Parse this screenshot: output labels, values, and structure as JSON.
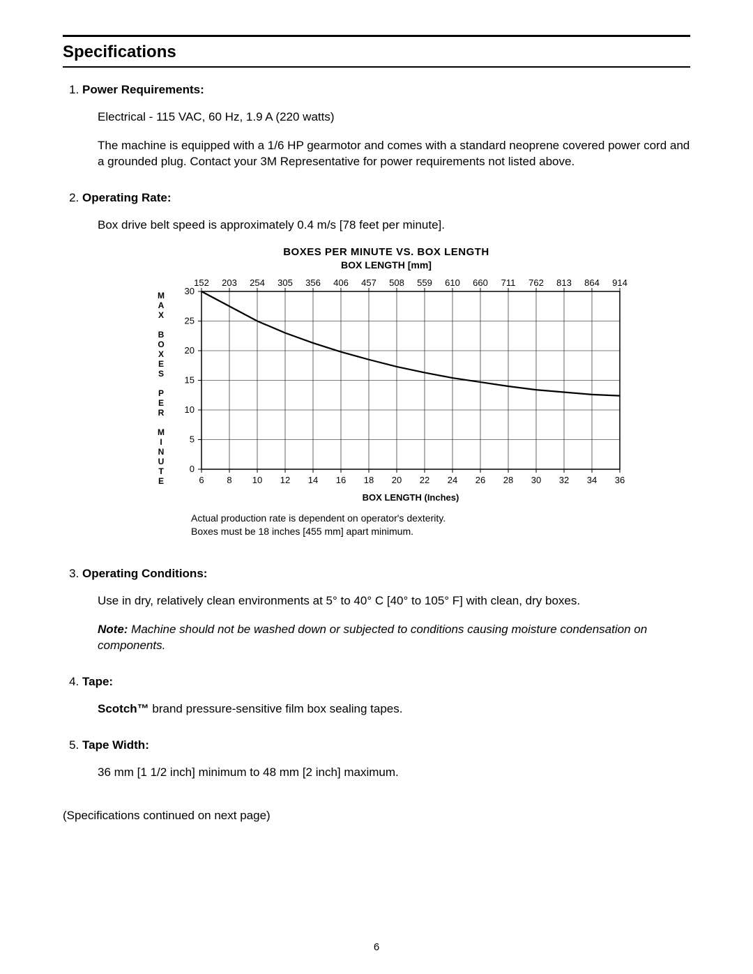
{
  "section_title": "Specifications",
  "items": [
    {
      "heading": "Power Requirements:",
      "paragraphs": [
        "Electrical - 115 VAC, 60 Hz, 1.9 A (220 watts)",
        "The machine is equipped with a 1/6 HP gearmotor and comes with a standard neoprene covered power cord and a grounded plug.  Contact your 3M  Representative for power requirements not listed above."
      ]
    },
    {
      "heading": "Operating Rate:",
      "paragraphs": [
        "Box drive belt speed is approximately 0.4 m/s [78 feet per minute]."
      ]
    },
    {
      "heading": "Operating Conditions:",
      "paragraphs": [
        "Use in dry, relatively clean environments at 5° to 40° C [40°  to 105° F]  with clean, dry boxes."
      ],
      "note_label": "Note:",
      "note_body": "  Machine should not be washed down or subjected to conditions causing moisture condensation on components."
    },
    {
      "heading": "Tape:",
      "brand_text": "Scotch™",
      "tape_body": " brand pressure-sensitive film box sealing tapes."
    },
    {
      "heading": "Tape Width:",
      "paragraphs": [
        "36 mm [1 1/2 inch] minimum to 48 mm [2 inch] maximum."
      ]
    }
  ],
  "chart": {
    "type": "line",
    "title": "BOXES PER MINUTE VS. BOX LENGTH",
    "top_axis_label": "BOX LENGTH [mm]",
    "top_ticks": [
      "152",
      "203",
      "254",
      "305",
      "356",
      "406",
      "457",
      "508",
      "559",
      "610",
      "660",
      "711",
      "762",
      "813",
      "864",
      "914"
    ],
    "bottom_axis_label": "BOX LENGTH (Inches)",
    "bottom_ticks": [
      6,
      8,
      10,
      12,
      14,
      16,
      18,
      20,
      22,
      24,
      26,
      28,
      30,
      32,
      34,
      36
    ],
    "y_axis_label": "MAX BOXES PER MINUTE",
    "y_ticks": [
      0,
      5,
      10,
      15,
      20,
      25,
      30
    ],
    "ylim": [
      0,
      30
    ],
    "xlim": [
      6,
      36
    ],
    "curve": [
      {
        "x": 6,
        "y": 30
      },
      {
        "x": 8,
        "y": 27.5
      },
      {
        "x": 10,
        "y": 25
      },
      {
        "x": 12,
        "y": 23
      },
      {
        "x": 14,
        "y": 21.3
      },
      {
        "x": 16,
        "y": 19.8
      },
      {
        "x": 18,
        "y": 18.5
      },
      {
        "x": 20,
        "y": 17.3
      },
      {
        "x": 22,
        "y": 16.3
      },
      {
        "x": 24,
        "y": 15.4
      },
      {
        "x": 26,
        "y": 14.7
      },
      {
        "x": 28,
        "y": 14.0
      },
      {
        "x": 30,
        "y": 13.4
      },
      {
        "x": 32,
        "y": 13.0
      },
      {
        "x": 34,
        "y": 12.6
      },
      {
        "x": 36,
        "y": 12.4
      }
    ],
    "line_color": "#000000",
    "line_width": 2.2,
    "grid_color": "#000000",
    "grid_width": 0.6,
    "background_color": "#ffffff",
    "tick_fontsize": 13,
    "label_fontsize": 13,
    "y_label_fontsize": 12,
    "footnotes": [
      "Actual production rate is dependent on operator's dexterity.",
      "Boxes must be 18 inches [455 mm] apart minimum."
    ]
  },
  "continue_text": "(Specifications continued on next page)",
  "page_number": "6"
}
